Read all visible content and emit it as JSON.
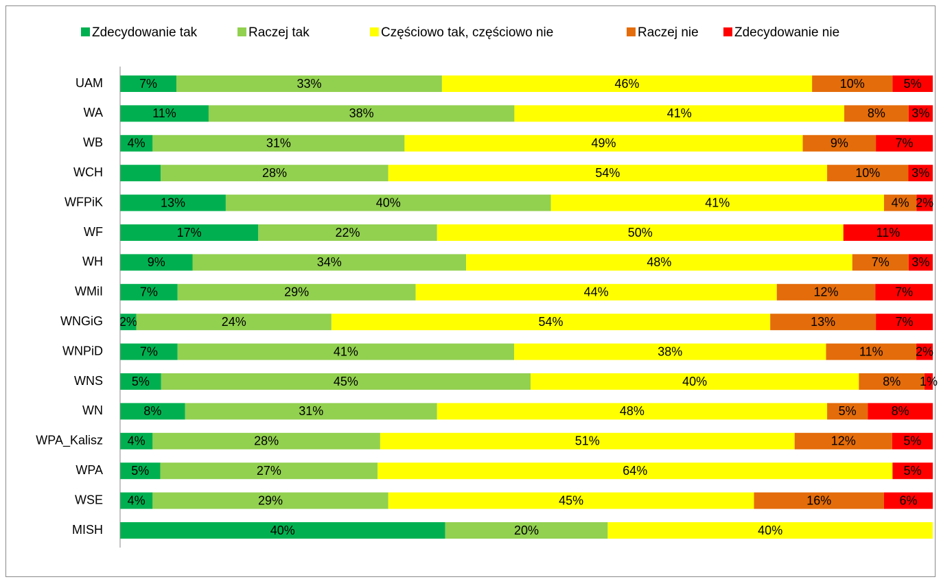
{
  "chart_data": {
    "type": "stacked-bar-horizontal",
    "categories": [
      "UAM",
      "WA",
      "WB",
      "WCH",
      "WFPiK",
      "WF",
      "WH",
      "WMiI",
      "WNGiG",
      "WNPiD",
      "WNS",
      "WN",
      "WPA_Kalisz",
      "WPA",
      "WSE",
      "MISH"
    ],
    "legend": "top",
    "series": [
      {
        "name": "Zdecydowanie tak",
        "color": "#00b050",
        "values": [
          7,
          11,
          4,
          5,
          13,
          17,
          9,
          7,
          2,
          7,
          5,
          8,
          4,
          5,
          4,
          40
        ],
        "value_labels": [
          "7%",
          "11%",
          "4%",
          null,
          "13%",
          "17%",
          "9%",
          "7%",
          "2%",
          "7%",
          "5%",
          "8%",
          "4%",
          "5%",
          "4%",
          "40%"
        ]
      },
      {
        "name": "Raczej tak",
        "color": "#92d050",
        "values": [
          33,
          38,
          31,
          28,
          40,
          22,
          34,
          29,
          24,
          41,
          45,
          31,
          28,
          27,
          29,
          20
        ],
        "value_labels": [
          "33%",
          "38%",
          "31%",
          "28%",
          "40%",
          "22%",
          "34%",
          "29%",
          "24%",
          "41%",
          "45%",
          "31%",
          "28%",
          "27%",
          "29%",
          "20%"
        ]
      },
      {
        "name": "Częściowo tak, częściowo nie",
        "color": "#ffff00",
        "values": [
          46,
          41,
          49,
          54,
          41,
          50,
          48,
          44,
          54,
          38,
          40,
          48,
          51,
          64,
          45,
          40
        ],
        "value_labels": [
          "46%",
          "41%",
          "49%",
          "54%",
          "41%",
          "50%",
          "48%",
          "44%",
          "54%",
          "38%",
          "40%",
          "48%",
          "51%",
          "64%",
          "45%",
          "40%"
        ]
      },
      {
        "name": "Raczej nie",
        "color": "#e46c0a",
        "values": [
          10,
          8,
          9,
          10,
          4,
          0,
          7,
          12,
          13,
          11,
          8,
          5,
          12,
          0,
          16,
          0
        ],
        "value_labels": [
          "10%",
          "8%",
          "9%",
          "10%",
          "4%",
          null,
          "7%",
          "12%",
          "13%",
          "11%",
          "8%",
          "5%",
          "12%",
          null,
          "16%",
          null
        ]
      },
      {
        "name": "Zdecydowanie nie",
        "color": "#ff0000",
        "values": [
          5,
          3,
          7,
          3,
          2,
          11,
          3,
          7,
          7,
          2,
          1,
          8,
          5,
          5,
          6,
          0
        ],
        "value_labels": [
          "5%",
          "3%",
          "7%",
          "3%",
          "2%",
          "11%",
          "3%",
          "7%",
          "7%",
          "2%",
          "1%",
          "8%",
          "5%",
          "5%",
          "6%",
          null
        ]
      }
    ]
  }
}
